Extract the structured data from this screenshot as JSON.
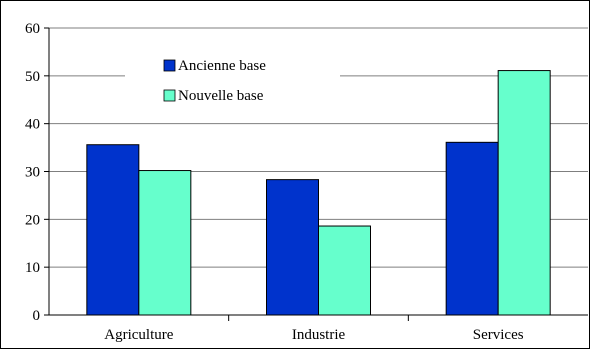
{
  "chart_data": {
    "type": "bar",
    "categories": [
      "Agriculture",
      "Industrie",
      "Services"
    ],
    "series": [
      {
        "name": "Ancienne base",
        "values": [
          35.6,
          28.3,
          36.1
        ],
        "color": "#0033cc"
      },
      {
        "name": "Nouvelle base",
        "values": [
          30.2,
          18.6,
          51.1
        ],
        "color": "#66ffcc"
      }
    ],
    "title": "",
    "xlabel": "",
    "ylabel": "",
    "ylim": [
      0,
      60
    ],
    "yticks": [
      "0",
      "10",
      "20",
      "30",
      "40",
      "50",
      "60"
    ],
    "grid": true,
    "legend_position": "top-left"
  }
}
